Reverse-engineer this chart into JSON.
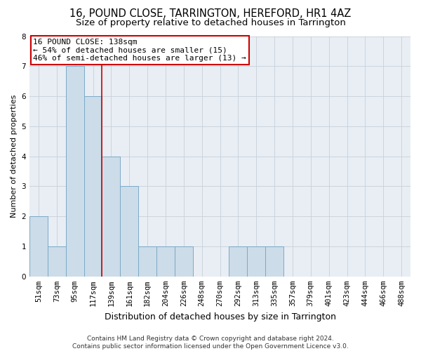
{
  "title": "16, POUND CLOSE, TARRINGTON, HEREFORD, HR1 4AZ",
  "subtitle": "Size of property relative to detached houses in Tarrington",
  "xlabel": "Distribution of detached houses by size in Tarrington",
  "ylabel": "Number of detached properties",
  "bins": [
    "51sqm",
    "73sqm",
    "95sqm",
    "117sqm",
    "139sqm",
    "161sqm",
    "182sqm",
    "204sqm",
    "226sqm",
    "248sqm",
    "270sqm",
    "292sqm",
    "313sqm",
    "335sqm",
    "357sqm",
    "379sqm",
    "401sqm",
    "423sqm",
    "444sqm",
    "466sqm",
    "488sqm"
  ],
  "values": [
    2,
    1,
    7,
    6,
    4,
    3,
    1,
    1,
    1,
    0,
    0,
    1,
    1,
    1,
    0,
    0,
    0,
    0,
    0,
    0,
    0
  ],
  "bar_color": "#ccdce8",
  "bar_edge_color": "#7aaac8",
  "red_line_index": 4,
  "red_line_color": "#cc0000",
  "annotation_text": "16 POUND CLOSE: 138sqm\n← 54% of detached houses are smaller (15)\n46% of semi-detached houses are larger (13) →",
  "annotation_box_color": "white",
  "annotation_box_edge_color": "#cc0000",
  "ylim": [
    0,
    8
  ],
  "yticks": [
    0,
    1,
    2,
    3,
    4,
    5,
    6,
    7,
    8
  ],
  "grid_color": "#c8d0d8",
  "background_color": "#e8eef4",
  "footer_text": "Contains HM Land Registry data © Crown copyright and database right 2024.\nContains public sector information licensed under the Open Government Licence v3.0.",
  "title_fontsize": 10.5,
  "subtitle_fontsize": 9.5,
  "xlabel_fontsize": 9,
  "ylabel_fontsize": 8,
  "tick_fontsize": 7.5,
  "annotation_fontsize": 8,
  "footer_fontsize": 6.5
}
